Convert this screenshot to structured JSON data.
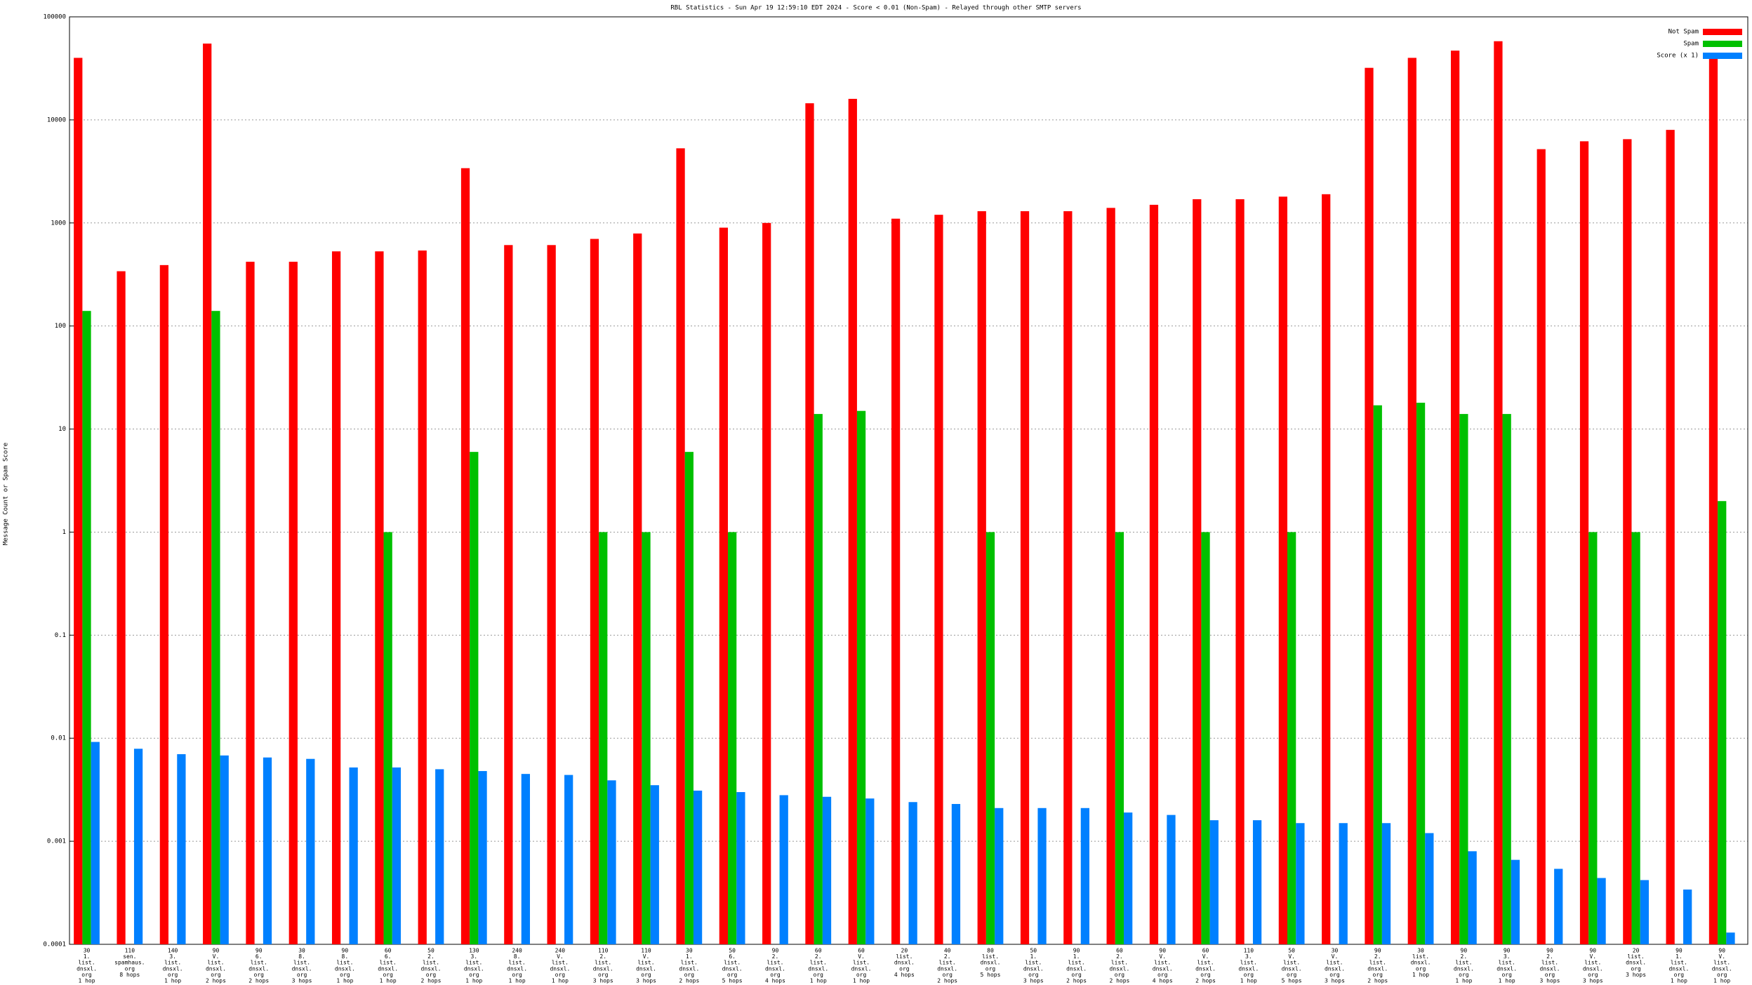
{
  "chart_data": {
    "type": "bar",
    "title": "RBL Statistics - Sun Apr 19 12:59:10 EDT 2024 - Score < 0.01 (Non-Spam) - Relayed through other SMTP servers",
    "y_label": "Message Count or Spam Score",
    "log_scale": true,
    "grid": true,
    "legend": "top-right",
    "ylim": [
      0.0001,
      100000
    ],
    "yticks": [
      0.0001,
      0.001,
      0.01,
      0.1,
      1,
      10,
      100,
      1000,
      10000,
      100000
    ],
    "categories": [
      [
        "30",
        "1.",
        "list.",
        "dnsxl.",
        "org",
        "1 hop"
      ],
      [
        "110",
        "sen.",
        "spamhaus.",
        "org",
        "8 hops"
      ],
      [
        "140",
        "3.",
        "list.",
        "dnsxl.",
        "org",
        "1 hop"
      ],
      [
        "90",
        "V.",
        "list.",
        "dnsxl.",
        "org",
        "2 hops"
      ],
      [
        "90",
        "6.",
        "list.",
        "dnsxl.",
        "org",
        "2 hops"
      ],
      [
        "30",
        "8.",
        "list.",
        "dnsxl.",
        "org",
        "3 hops"
      ],
      [
        "90",
        "8.",
        "list.",
        "dnsxl.",
        "org",
        "1 hop"
      ],
      [
        "60",
        "6.",
        "list.",
        "dnsxl.",
        "org",
        "1 hop"
      ],
      [
        "50",
        "2.",
        "list.",
        "dnsxl.",
        "org",
        "2 hops"
      ],
      [
        "130",
        "3.",
        "list.",
        "dnsxl.",
        "org",
        "1 hop"
      ],
      [
        "240",
        "8.",
        "list.",
        "dnsxl.",
        "org",
        "1 hop"
      ],
      [
        "240",
        "V.",
        "list.",
        "dnsxl.",
        "org",
        "1 hop"
      ],
      [
        "110",
        "2.",
        "list.",
        "dnsxl.",
        "org",
        "3 hops"
      ],
      [
        "110",
        "V.",
        "list.",
        "dnsxl.",
        "org",
        "3 hops"
      ],
      [
        "30",
        "1.",
        "list.",
        "dnsxl.",
        "org",
        "2 hops"
      ],
      [
        "50",
        "6.",
        "list.",
        "dnsxl.",
        "org",
        "5 hops"
      ],
      [
        "90",
        "2.",
        "list.",
        "dnsxl.",
        "org",
        "4 hops"
      ],
      [
        "60",
        "2.",
        "list.",
        "dnsxl.",
        "org",
        "1 hop"
      ],
      [
        "60",
        "V.",
        "list.",
        "dnsxl.",
        "org",
        "1 hop"
      ],
      [
        "20",
        "list.",
        "dnsxl.",
        "org",
        "4 hops"
      ],
      [
        "40",
        "2.",
        "list.",
        "dnsxl.",
        "org",
        "2 hops"
      ],
      [
        "80",
        "list.",
        "dnsxl.",
        "org",
        "5 hops"
      ],
      [
        "50",
        "1.",
        "list.",
        "dnsxl.",
        "org",
        "3 hops"
      ],
      [
        "90",
        "1.",
        "list.",
        "dnsxl.",
        "org",
        "2 hops"
      ],
      [
        "60",
        "2.",
        "list.",
        "dnsxl.",
        "org",
        "2 hops"
      ],
      [
        "90",
        "V.",
        "list.",
        "dnsxl.",
        "org",
        "4 hops"
      ],
      [
        "60",
        "V.",
        "list.",
        "dnsxl.",
        "org",
        "2 hops"
      ],
      [
        "110",
        "3.",
        "list.",
        "dnsxl.",
        "org",
        "1 hop"
      ],
      [
        "50",
        "V.",
        "list.",
        "dnsxl.",
        "org",
        "5 hops"
      ],
      [
        "30",
        "V.",
        "list.",
        "dnsxl.",
        "org",
        "3 hops"
      ],
      [
        "90",
        "2.",
        "list.",
        "dnsxl.",
        "org",
        "2 hops"
      ],
      [
        "30",
        "list.",
        "dnsxl.",
        "org",
        "1 hop"
      ],
      [
        "90",
        "2.",
        "list.",
        "dnsxl.",
        "org",
        "1 hop"
      ],
      [
        "90",
        "3.",
        "list.",
        "dnsxl.",
        "org",
        "1 hop"
      ],
      [
        "90",
        "2.",
        "list.",
        "dnsxl.",
        "org",
        "3 hops"
      ],
      [
        "90",
        "V.",
        "list.",
        "dnsxl.",
        "org",
        "3 hops"
      ],
      [
        "20",
        "list.",
        "dnsxl.",
        "org",
        "3 hops"
      ],
      [
        "90",
        "1.",
        "list.",
        "dnsxl.",
        "org",
        "1 hop"
      ],
      [
        "90",
        "V.",
        "list.",
        "dnsxl.",
        "org",
        "1 hop"
      ]
    ],
    "series": [
      {
        "name": "Not Spam",
        "color": "#ff0000",
        "values": [
          40000,
          340,
          390,
          55000,
          420,
          420,
          530,
          530,
          540,
          3400,
          610,
          610,
          700,
          790,
          5300,
          900,
          1000,
          14500,
          16000,
          1100,
          1200,
          1300,
          1300,
          1300,
          1400,
          1500,
          1700,
          1700,
          1800,
          1900,
          32000,
          40000,
          47000,
          58000,
          5200,
          6200,
          6500,
          8000,
          43000
        ]
      },
      {
        "name": "Spam",
        "color": "#00c000",
        "values": [
          140,
          null,
          null,
          140,
          null,
          null,
          null,
          1,
          null,
          6,
          null,
          null,
          1,
          1,
          6,
          1,
          null,
          14,
          15,
          null,
          null,
          1,
          null,
          null,
          1,
          null,
          1,
          null,
          1,
          null,
          17,
          18,
          14,
          14,
          null,
          1,
          1,
          null,
          2
        ]
      },
      {
        "name": "Score (x 1)",
        "color": "#0080ff",
        "values": [
          0.0092,
          0.0079,
          0.007,
          0.0068,
          0.0065,
          0.0063,
          0.0052,
          0.0052,
          0.005,
          0.0048,
          0.0045,
          0.0044,
          0.0039,
          0.0035,
          0.0031,
          0.003,
          0.0028,
          0.0027,
          0.0026,
          0.0024,
          0.0023,
          0.0021,
          0.0021,
          0.0021,
          0.0019,
          0.0018,
          0.0016,
          0.0016,
          0.0015,
          0.0015,
          0.0015,
          0.0012,
          0.0008,
          0.00066,
          0.00054,
          0.00044,
          0.00042,
          0.00034,
          0.00013
        ]
      }
    ]
  }
}
